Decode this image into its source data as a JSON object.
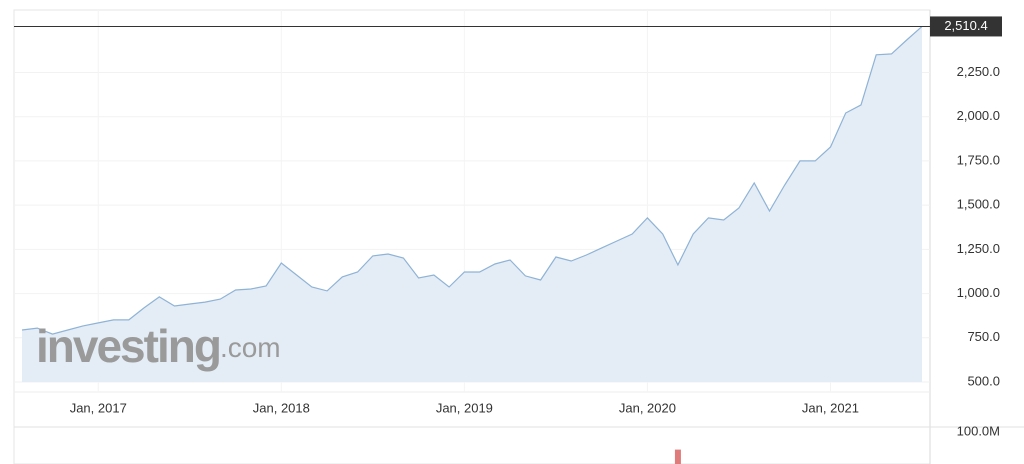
{
  "chart_data": [
    {
      "type": "line",
      "x": [
        "2016-08",
        "2016-09",
        "2016-10",
        "2016-11",
        "2016-12",
        "2017-01",
        "2017-02",
        "2017-03",
        "2017-04",
        "2017-05",
        "2017-06",
        "2017-07",
        "2017-08",
        "2017-09",
        "2017-10",
        "2017-11",
        "2017-12",
        "2018-01",
        "2018-02",
        "2018-03",
        "2018-04",
        "2018-05",
        "2018-06",
        "2018-07",
        "2018-08",
        "2018-09",
        "2018-10",
        "2018-11",
        "2018-12",
        "2019-01",
        "2019-02",
        "2019-03",
        "2019-04",
        "2019-05",
        "2019-06",
        "2019-07",
        "2019-08",
        "2019-09",
        "2019-10",
        "2019-11",
        "2019-12",
        "2020-01",
        "2020-02",
        "2020-03",
        "2020-04",
        "2020-05",
        "2020-06",
        "2020-07",
        "2020-08",
        "2020-09",
        "2020-10",
        "2020-11",
        "2020-12",
        "2021-01",
        "2021-02",
        "2021-03",
        "2021-04",
        "2021-05",
        "2021-06",
        "2021-07"
      ],
      "series": [
        {
          "color": "#8fb3d6",
          "fill": "#e4edf6",
          "values": [
            794,
            805,
            771,
            794,
            817,
            834,
            851,
            851,
            919,
            981,
            930,
            941,
            952,
            969,
            1020,
            1026,
            1043,
            1173,
            1105,
            1037,
            1015,
            1094,
            1122,
            1213,
            1224,
            1201,
            1088,
            1105,
            1037,
            1122,
            1122,
            1167,
            1190,
            1100,
            1077,
            1207,
            1184,
            1218,
            1258,
            1297,
            1337,
            1428,
            1337,
            1162,
            1337,
            1428,
            1416,
            1484,
            1626,
            1467,
            1614,
            1750,
            1750,
            1829,
            2021,
            2067,
            2350,
            2355,
            2434,
            2510.4
          ]
        }
      ],
      "current_price": {
        "value": 2510.4,
        "label": "2,510.4"
      },
      "xlim": [
        "2016-08",
        "2021-07"
      ],
      "xticks": [
        {
          "value": "2017-01",
          "label": "Jan, 2017"
        },
        {
          "value": "2018-01",
          "label": "Jan, 2018"
        },
        {
          "value": "2019-01",
          "label": "Jan, 2019"
        },
        {
          "value": "2020-01",
          "label": "Jan, 2020"
        },
        {
          "value": "2021-01",
          "label": "Jan, 2021"
        }
      ],
      "ylim": [
        500,
        2600
      ],
      "yticks": [
        {
          "value": 500,
          "label": "500.0"
        },
        {
          "value": 750,
          "label": "750.0"
        },
        {
          "value": 1000,
          "label": "1,000.0"
        },
        {
          "value": 1250,
          "label": "1,250.0"
        },
        {
          "value": 1500,
          "label": "1,500.0"
        },
        {
          "value": 1750,
          "label": "1,750.0"
        },
        {
          "value": 2000,
          "label": "2,000.0"
        },
        {
          "value": 2250,
          "label": "2,250.0"
        }
      ],
      "grid": true,
      "watermark": {
        "brand": "investing",
        "suffix": ".com"
      }
    },
    {
      "type": "bar",
      "x": [
        "2020-03"
      ],
      "values": [
        80000000
      ],
      "color": "#e07b7b",
      "ylim": [
        0,
        100000000
      ],
      "yticks": [
        {
          "value": 100000000,
          "label": "100.0M"
        }
      ]
    }
  ]
}
